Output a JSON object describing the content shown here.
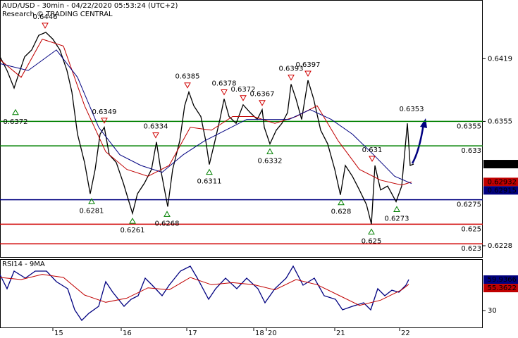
{
  "chart_data": [
    {
      "type": "line",
      "title": "AUD/USD - 30min - 04/22/2020 05:53:24 (UTC+2)",
      "subtitle": "Research © TRADING CENTRAL",
      "xlim": [
        0,
        342.5
      ],
      "ylim": [
        0.62165,
        0.6479
      ],
      "yticks": [
        0.6419,
        0.6355,
        0.6228
      ],
      "series": [
        {
          "color": "#000000",
          "x": [
            0,
            5,
            10,
            12.5,
            17.5,
            22.5,
            27.5,
            32.5,
            37.5,
            42.5,
            47.5,
            51,
            55,
            60,
            64,
            67.5,
            71,
            74,
            77.5,
            82.5,
            87.5,
            94,
            97.5,
            102.5,
            107.5,
            111,
            114,
            119,
            122.5,
            127.5,
            131,
            134,
            137.5,
            142.5,
            146,
            148.5,
            152.5,
            156,
            159,
            162.5,
            167.5,
            172.5,
            177.5,
            182.5,
            186,
            187.5,
            191.5,
            196,
            200,
            204,
            206.5,
            210,
            214,
            218.5,
            222.5,
            227.5,
            232.5,
            237.5,
            241.5,
            245,
            250,
            255,
            260,
            263.5,
            266,
            270,
            275,
            281,
            285,
            289,
            291,
            293.5
          ],
          "values": [
            0.6421,
            0.6407,
            0.6389,
            0.64,
            0.6421,
            0.6428,
            0.6443,
            0.6446,
            0.6439,
            0.6428,
            0.6407,
            0.6385,
            0.6342,
            0.6313,
            0.6281,
            0.6306,
            0.6342,
            0.6349,
            0.6321,
            0.6313,
            0.6292,
            0.6261,
            0.6281,
            0.6292,
            0.6306,
            0.6334,
            0.6306,
            0.6268,
            0.6306,
            0.6335,
            0.6371,
            0.6385,
            0.6371,
            0.636,
            0.6335,
            0.6311,
            0.6335,
            0.6357,
            0.6378,
            0.636,
            0.6353,
            0.6372,
            0.6364,
            0.6357,
            0.6367,
            0.6349,
            0.6332,
            0.6346,
            0.6353,
            0.6364,
            0.6393,
            0.6378,
            0.6357,
            0.6397,
            0.6378,
            0.6346,
            0.6332,
            0.6306,
            0.628,
            0.631,
            0.6299,
            0.6285,
            0.627,
            0.625,
            0.631,
            0.6285,
            0.6289,
            0.6273,
            0.6289,
            0.6353,
            0.631,
            0.63114
          ]
        },
        {
          "color": "#c00000",
          "x": [
            0,
            15,
            30,
            45,
            60,
            75,
            90,
            105,
            120,
            135,
            150,
            165,
            180,
            195,
            210,
            225,
            240,
            255,
            270,
            285,
            292
          ],
          "values": [
            0.6418,
            0.64,
            0.6439,
            0.6432,
            0.6371,
            0.6324,
            0.6306,
            0.6299,
            0.631,
            0.6349,
            0.6346,
            0.636,
            0.636,
            0.6353,
            0.636,
            0.6371,
            0.6335,
            0.6306,
            0.6295,
            0.629,
            0.62932
          ]
        },
        {
          "color": "#000080",
          "x": [
            0,
            20,
            40,
            55,
            70,
            85,
            100,
            115,
            130,
            145,
            160,
            175,
            190,
            205,
            220,
            235,
            250,
            265,
            280,
            292
          ],
          "values": [
            0.6414,
            0.6407,
            0.6428,
            0.64,
            0.6349,
            0.6321,
            0.631,
            0.6303,
            0.6321,
            0.6335,
            0.6346,
            0.6357,
            0.6357,
            0.6357,
            0.6367,
            0.6357,
            0.6342,
            0.6321,
            0.6299,
            0.62915
          ]
        }
      ],
      "levels": [
        {
          "value": 0.6355,
          "color": "#008000"
        },
        {
          "value": 0.633,
          "color": "#008000"
        },
        {
          "value": 0.6275,
          "color": "#000080"
        },
        {
          "value": 0.625,
          "color": "#d00000"
        },
        {
          "value": 0.623,
          "color": "#d00000"
        }
      ],
      "peaks": [
        {
          "x": 32,
          "value": 0.6446
        },
        {
          "x": 74,
          "value": 0.6349
        },
        {
          "x": 110.5,
          "value": 0.6334
        },
        {
          "x": 133,
          "value": 0.6385
        },
        {
          "x": 159,
          "value": 0.6378
        },
        {
          "x": 172.5,
          "value": 0.6372
        },
        {
          "x": 186,
          "value": 0.6367
        },
        {
          "x": 206.5,
          "value": 0.6393
        },
        {
          "x": 218.5,
          "value": 0.6397
        },
        {
          "x": 264,
          "value": 0.631
        }
      ],
      "troughs": [
        {
          "x": 11,
          "value": 0.6372
        },
        {
          "x": 65,
          "value": 0.6281
        },
        {
          "x": 94,
          "value": 0.6261
        },
        {
          "x": 118.5,
          "value": 0.6268
        },
        {
          "x": 148.5,
          "value": 0.6311
        },
        {
          "x": 191.5,
          "value": 0.6332
        },
        {
          "x": 242,
          "value": 0.628
        },
        {
          "x": 263.5,
          "value": 0.625
        },
        {
          "x": 281.5,
          "value": 0.6273
        }
      ],
      "last_high": {
        "x": 292,
        "value": 0.6353
      }
    },
    {
      "type": "line",
      "title": "RSI14 - 9MA",
      "xlim": [
        0,
        342.5
      ],
      "ylim": [
        13.7,
        79.7
      ],
      "yticks": [
        30
      ],
      "xticks": [
        {
          "value": 37.5,
          "label": "15"
        },
        {
          "value": 86,
          "label": "16"
        },
        {
          "value": 132.5,
          "label": "17"
        },
        {
          "value": 180,
          "label": "18"
        },
        {
          "value": 189,
          "label": "20"
        },
        {
          "value": 237.5,
          "label": "21"
        },
        {
          "value": 283.5,
          "label": "22"
        }
      ],
      "series": [
        {
          "color": "#000080",
          "x": [
            0,
            5,
            10,
            18,
            25,
            33,
            40,
            48,
            53,
            58,
            63,
            70,
            75,
            80,
            88,
            93,
            98,
            103,
            108,
            115,
            120,
            128,
            135,
            140,
            148,
            153,
            160,
            168,
            175,
            183,
            188,
            195,
            203,
            208,
            215,
            223,
            230,
            238,
            243,
            250,
            258,
            263,
            268,
            273,
            278,
            283,
            288,
            290
          ],
          "values": [
            64.7,
            51.1,
            68.1,
            61.3,
            68.1,
            68.1,
            57.9,
            51.1,
            30.7,
            20.5,
            27.3,
            34.1,
            57.9,
            47.7,
            34.1,
            40.9,
            44.3,
            61.3,
            54.5,
            44.3,
            54.5,
            68.1,
            72.9,
            61.3,
            40.9,
            51.1,
            61.3,
            51.1,
            61.3,
            51.1,
            37.5,
            51.1,
            61.3,
            72.9,
            54.5,
            61.3,
            44.3,
            40.9,
            30.7,
            34.1,
            37.5,
            30.7,
            51.1,
            44.3,
            49.7,
            47.7,
            54.5,
            59.9366
          ]
        },
        {
          "color": "#c00000",
          "x": [
            0,
            15,
            30,
            45,
            60,
            75,
            90,
            105,
            120,
            135,
            150,
            165,
            180,
            195,
            210,
            225,
            240,
            255,
            270,
            285,
            290
          ],
          "values": [
            62,
            60,
            65,
            62,
            45,
            38,
            42,
            52,
            50,
            62,
            55,
            57,
            55,
            50,
            60,
            55,
            45,
            35,
            40,
            50,
            55.3622
          ]
        }
      ]
    }
  ]
}
